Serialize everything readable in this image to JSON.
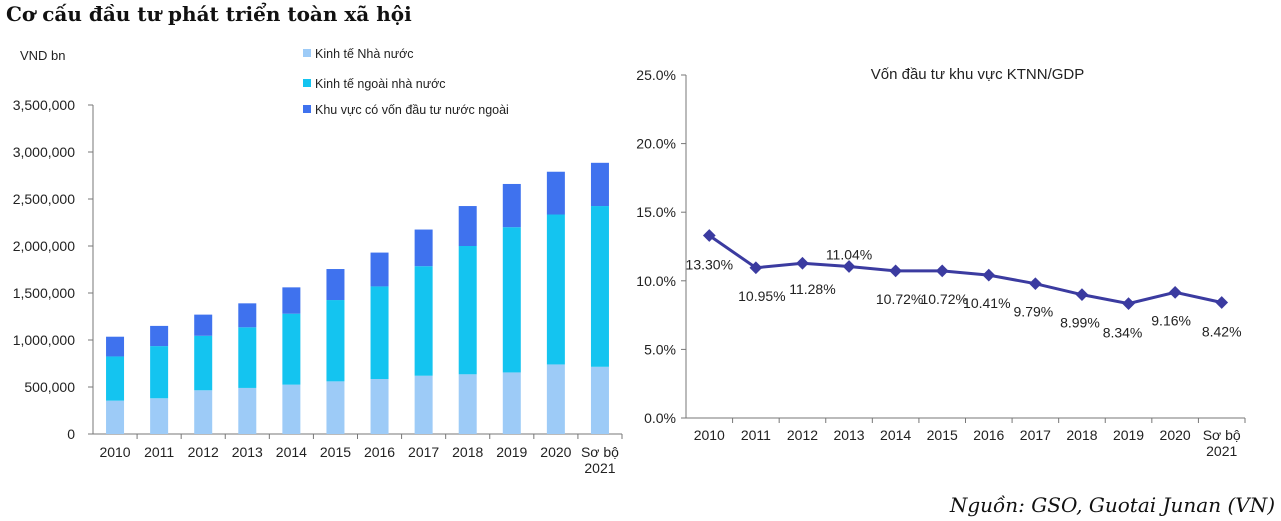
{
  "page": {
    "title": "Cơ cấu đầu tư phát triển toàn xã hội",
    "source": "Nguồn: GSO, Guotai Junan (VN)"
  },
  "chart_data": [
    {
      "type": "bar",
      "stacked": true,
      "title": "",
      "ylabel": "VND bn",
      "categories": [
        "2010",
        "2011",
        "2012",
        "2013",
        "2014",
        "2015",
        "2016",
        "2017",
        "2018",
        "2019",
        "2020",
        "Sơ bộ 2021"
      ],
      "ylim": [
        0,
        3500000
      ],
      "yticks": [
        0,
        500000,
        1000000,
        1500000,
        2000000,
        2500000,
        3000000,
        3500000
      ],
      "ytick_labels": [
        "0",
        "500,000",
        "1,000,000",
        "1,500,000",
        "2,000,000",
        "2,500,000",
        "3,000,000",
        "3,500,000"
      ],
      "legend_position": "top-left",
      "series": [
        {
          "name": "Kinh tế  Nhà nước",
          "color": "#9DCBF7",
          "values": [
            355000,
            380000,
            465000,
            490000,
            525000,
            560000,
            585000,
            620000,
            635000,
            655000,
            740000,
            715000
          ]
        },
        {
          "name": "Kinh tế ngoài  nhà nước",
          "color": "#14C4F0",
          "values": [
            470000,
            555000,
            580000,
            645000,
            755000,
            865000,
            985000,
            1165000,
            1365000,
            1545000,
            1595000,
            1710000
          ]
        },
        {
          "name": "Khu vực có vốn  đầu tư nước ngoài",
          "color": "#3F72EE",
          "values": [
            210000,
            215000,
            225000,
            255000,
            280000,
            330000,
            360000,
            390000,
            425000,
            460000,
            455000,
            460000
          ]
        }
      ]
    },
    {
      "type": "line",
      "title": "Vốn đầu tư khu vực KTNN/GDP",
      "categories": [
        "2010",
        "2011",
        "2012",
        "2013",
        "2014",
        "2015",
        "2016",
        "2017",
        "2018",
        "2019",
        "2020",
        "Sơ bộ 2021"
      ],
      "ylim": [
        0,
        25
      ],
      "yticks": [
        0,
        5,
        10,
        15,
        20,
        25
      ],
      "ytick_labels": [
        "0.0%",
        "5.0%",
        "10.0%",
        "15.0%",
        "20.0%",
        "25.0%"
      ],
      "series": [
        {
          "color": "#3B3BA0",
          "values": [
            13.3,
            10.95,
            11.28,
            11.04,
            10.72,
            10.72,
            10.41,
            9.79,
            8.99,
            8.34,
            9.16,
            8.42
          ],
          "labels": [
            "13.30%",
            "10.95%",
            "11.28%",
            "11.04%",
            "10.72%",
            "10.72%",
            "10.41%",
            "9.79%",
            "8.99%",
            "8.34%",
            "9.16%",
            "8.42%"
          ]
        }
      ]
    }
  ]
}
